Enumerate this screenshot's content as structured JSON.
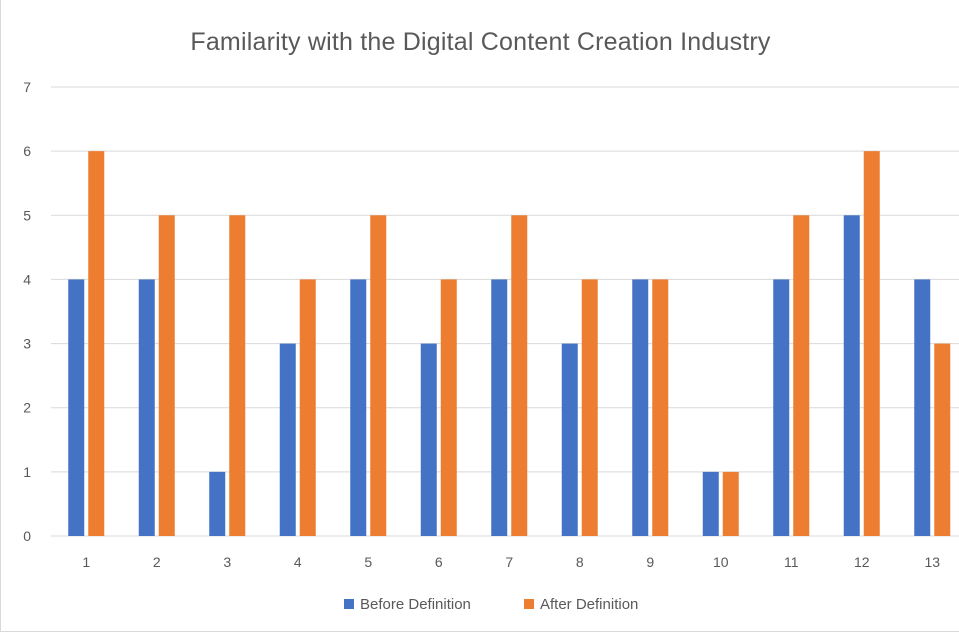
{
  "chart_data": {
    "type": "bar",
    "title": "Familarity with the Digital Content Creation Industry",
    "xlabel": "",
    "ylabel": "",
    "categories": [
      "1",
      "2",
      "3",
      "4",
      "5",
      "6",
      "7",
      "8",
      "9",
      "10",
      "11",
      "12",
      "13"
    ],
    "series": [
      {
        "name": "Before Definition",
        "color": "#4472C4",
        "values": [
          4,
          4,
          1,
          3,
          4,
          3,
          4,
          3,
          4,
          1,
          4,
          5,
          4
        ]
      },
      {
        "name": "After Definition",
        "color": "#ED7D31",
        "values": [
          6,
          5,
          5,
          4,
          5,
          4,
          5,
          4,
          4,
          1,
          5,
          6,
          3
        ]
      }
    ],
    "yticks": [
      "0",
      "1",
      "2",
      "3",
      "4",
      "5",
      "6",
      "7"
    ],
    "ylim": [
      0,
      7
    ],
    "grid": true,
    "legend_position": "bottom",
    "gridline_color": "#D9D9D9"
  }
}
